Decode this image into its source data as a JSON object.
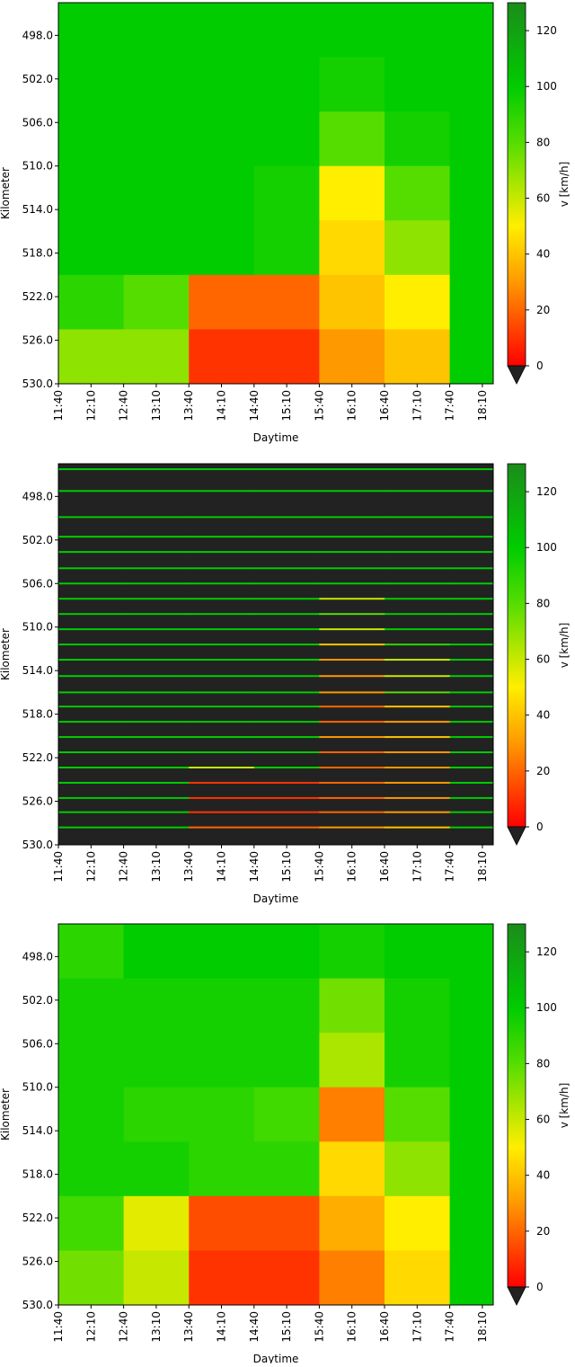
{
  "chart_data": [
    {
      "type": "heatmap",
      "xlabel": "Daytime",
      "ylabel": "Kilometer",
      "clabel": "v [km/h]",
      "xlim": [
        700,
        1100
      ],
      "ylim": [
        530,
        495
      ],
      "clim": [
        0,
        130
      ],
      "xticks": [
        {
          "value": 700,
          "label": "11:40"
        },
        {
          "value": 730,
          "label": "12:10"
        },
        {
          "value": 760,
          "label": "12:40"
        },
        {
          "value": 790,
          "label": "13:10"
        },
        {
          "value": 820,
          "label": "13:40"
        },
        {
          "value": 850,
          "label": "14:10"
        },
        {
          "value": 880,
          "label": "14:40"
        },
        {
          "value": 910,
          "label": "15:10"
        },
        {
          "value": 940,
          "label": "15:40"
        },
        {
          "value": 970,
          "label": "16:10"
        },
        {
          "value": 1000,
          "label": "16:40"
        },
        {
          "value": 1030,
          "label": "17:10"
        },
        {
          "value": 1060,
          "label": "17:40"
        },
        {
          "value": 1090,
          "label": "18:10"
        }
      ],
      "yticks": [
        {
          "value": 498,
          "label": "498.0"
        },
        {
          "value": 502,
          "label": "502.0"
        },
        {
          "value": 506,
          "label": "506.0"
        },
        {
          "value": 510,
          "label": "510.0"
        },
        {
          "value": 514,
          "label": "514.0"
        },
        {
          "value": 518,
          "label": "518.0"
        },
        {
          "value": 522,
          "label": "522.0"
        },
        {
          "value": 526,
          "label": "526.0"
        },
        {
          "value": 530,
          "label": "530.0"
        }
      ],
      "cticks": [
        0,
        20,
        40,
        60,
        80,
        100,
        120
      ],
      "colormap": [
        {
          "value": 0,
          "color": "#ff0000"
        },
        {
          "value": 30,
          "color": "#ff9900"
        },
        {
          "value": 50,
          "color": "#ffee00"
        },
        {
          "value": 80,
          "color": "#55dd00"
        },
        {
          "value": 100,
          "color": "#00cc00"
        },
        {
          "value": 130,
          "color": "#1b8c1b"
        }
      ],
      "extend_color": "#222222",
      "background": "#222222",
      "xbins": [
        700,
        760,
        820,
        880,
        940,
        1000,
        1060,
        1100
      ],
      "ybins": [
        495,
        500,
        505,
        510,
        515,
        520,
        525,
        530
      ],
      "z": [
        [
          100,
          100,
          100,
          100,
          100,
          100,
          100
        ],
        [
          100,
          100,
          100,
          100,
          95,
          100,
          100
        ],
        [
          100,
          100,
          100,
          100,
          80,
          95,
          100
        ],
        [
          100,
          100,
          100,
          95,
          50,
          80,
          100
        ],
        [
          100,
          100,
          100,
          95,
          45,
          70,
          100
        ],
        [
          90,
          80,
          20,
          20,
          40,
          50,
          100
        ],
        [
          70,
          70,
          10,
          10,
          30,
          40,
          100
        ]
      ]
    },
    {
      "type": "detector",
      "xlabel": "Daytime",
      "ylabel": "Kilometer",
      "clabel": "v [km/h]",
      "xlim": [
        700,
        1100
      ],
      "ylim": [
        530,
        495
      ],
      "clim": [
        0,
        130
      ],
      "xticks": [
        {
          "value": 700,
          "label": "11:40"
        },
        {
          "value": 730,
          "label": "12:10"
        },
        {
          "value": 760,
          "label": "12:40"
        },
        {
          "value": 790,
          "label": "13:10"
        },
        {
          "value": 820,
          "label": "13:40"
        },
        {
          "value": 850,
          "label": "14:10"
        },
        {
          "value": 880,
          "label": "14:40"
        },
        {
          "value": 910,
          "label": "15:10"
        },
        {
          "value": 940,
          "label": "15:40"
        },
        {
          "value": 970,
          "label": "16:10"
        },
        {
          "value": 1000,
          "label": "16:40"
        },
        {
          "value": 1030,
          "label": "17:10"
        },
        {
          "value": 1060,
          "label": "17:40"
        },
        {
          "value": 1090,
          "label": "18:10"
        }
      ],
      "yticks": [
        {
          "value": 498,
          "label": "498.0"
        },
        {
          "value": 502,
          "label": "502.0"
        },
        {
          "value": 506,
          "label": "506.0"
        },
        {
          "value": 510,
          "label": "510.0"
        },
        {
          "value": 514,
          "label": "514.0"
        },
        {
          "value": 518,
          "label": "518.0"
        },
        {
          "value": 522,
          "label": "522.0"
        },
        {
          "value": 526,
          "label": "526.0"
        },
        {
          "value": 530,
          "label": "530.0"
        }
      ],
      "cticks": [
        0,
        20,
        40,
        60,
        80,
        100,
        120
      ],
      "colormap": [
        {
          "value": 0,
          "color": "#ff0000"
        },
        {
          "value": 30,
          "color": "#ff9900"
        },
        {
          "value": 50,
          "color": "#ffee00"
        },
        {
          "value": 80,
          "color": "#55dd00"
        },
        {
          "value": 100,
          "color": "#00cc00"
        },
        {
          "value": 130,
          "color": "#1b8c1b"
        }
      ],
      "extend_color": "#222222",
      "background": "#222222",
      "xbins": [
        700,
        760,
        820,
        880,
        940,
        1000,
        1060,
        1100
      ],
      "detectors": [
        495.5,
        497.5,
        499.9,
        501.7,
        503.1,
        504.6,
        506.0,
        507.4,
        508.8,
        510.2,
        511.6,
        513.0,
        514.5,
        516.0,
        517.3,
        518.7,
        520.1,
        521.5,
        522.9,
        524.3,
        525.7,
        527.0,
        528.4
      ],
      "z": [
        [
          100,
          100,
          100,
          100,
          100,
          100,
          100
        ],
        [
          100,
          100,
          100,
          100,
          100,
          100,
          100
        ],
        [
          100,
          100,
          100,
          100,
          100,
          100,
          100
        ],
        [
          100,
          100,
          100,
          100,
          100,
          100,
          100
        ],
        [
          100,
          100,
          100,
          100,
          100,
          100,
          100
        ],
        [
          100,
          100,
          100,
          100,
          100,
          100,
          100
        ],
        [
          100,
          100,
          100,
          100,
          100,
          100,
          100
        ],
        [
          100,
          100,
          100,
          100,
          60,
          100,
          100
        ],
        [
          100,
          100,
          100,
          100,
          80,
          100,
          100
        ],
        [
          100,
          100,
          100,
          100,
          60,
          100,
          100
        ],
        [
          100,
          100,
          100,
          100,
          40,
          90,
          100
        ],
        [
          100,
          100,
          100,
          100,
          30,
          60,
          100
        ],
        [
          100,
          100,
          100,
          100,
          30,
          60,
          100
        ],
        [
          100,
          100,
          100,
          100,
          30,
          80,
          100
        ],
        [
          100,
          100,
          100,
          100,
          20,
          40,
          100
        ],
        [
          100,
          100,
          100,
          100,
          20,
          30,
          100
        ],
        [
          100,
          100,
          100,
          100,
          30,
          40,
          100
        ],
        [
          100,
          100,
          100,
          100,
          20,
          30,
          100
        ],
        [
          100,
          100,
          60,
          100,
          20,
          30,
          100
        ],
        [
          100,
          100,
          10,
          10,
          20,
          30,
          100
        ],
        [
          100,
          100,
          10,
          10,
          20,
          30,
          100
        ],
        [
          100,
          100,
          10,
          10,
          20,
          30,
          100
        ],
        [
          100,
          100,
          20,
          20,
          30,
          40,
          100
        ]
      ]
    },
    {
      "type": "heatmap",
      "xlabel": "Daytime",
      "ylabel": "Kilometer",
      "clabel": "v [km/h]",
      "xlim": [
        700,
        1100
      ],
      "ylim": [
        530,
        495
      ],
      "clim": [
        0,
        130
      ],
      "xticks": [
        {
          "value": 700,
          "label": "11:40"
        },
        {
          "value": 730,
          "label": "12:10"
        },
        {
          "value": 760,
          "label": "12:40"
        },
        {
          "value": 790,
          "label": "13:10"
        },
        {
          "value": 820,
          "label": "13:40"
        },
        {
          "value": 850,
          "label": "14:10"
        },
        {
          "value": 880,
          "label": "14:40"
        },
        {
          "value": 910,
          "label": "15:10"
        },
        {
          "value": 940,
          "label": "15:40"
        },
        {
          "value": 970,
          "label": "16:10"
        },
        {
          "value": 1000,
          "label": "16:40"
        },
        {
          "value": 1030,
          "label": "17:10"
        },
        {
          "value": 1060,
          "label": "17:40"
        },
        {
          "value": 1090,
          "label": "18:10"
        }
      ],
      "yticks": [
        {
          "value": 498,
          "label": "498.0"
        },
        {
          "value": 502,
          "label": "502.0"
        },
        {
          "value": 506,
          "label": "506.0"
        },
        {
          "value": 510,
          "label": "510.0"
        },
        {
          "value": 514,
          "label": "514.0"
        },
        {
          "value": 518,
          "label": "518.0"
        },
        {
          "value": 522,
          "label": "522.0"
        },
        {
          "value": 526,
          "label": "526.0"
        },
        {
          "value": 530,
          "label": "530.0"
        }
      ],
      "cticks": [
        0,
        20,
        40,
        60,
        80,
        100,
        120
      ],
      "colormap": [
        {
          "value": 0,
          "color": "#ff0000"
        },
        {
          "value": 30,
          "color": "#ff9900"
        },
        {
          "value": 50,
          "color": "#ffee00"
        },
        {
          "value": 80,
          "color": "#55dd00"
        },
        {
          "value": 100,
          "color": "#00cc00"
        },
        {
          "value": 130,
          "color": "#1b8c1b"
        }
      ],
      "extend_color": "#222222",
      "background": "#222222",
      "xbins": [
        700,
        760,
        820,
        880,
        940,
        1000,
        1060,
        1100
      ],
      "ybins": [
        495,
        500,
        505,
        510,
        515,
        520,
        525,
        530
      ],
      "z": [
        [
          90,
          100,
          100,
          100,
          95,
          100,
          100
        ],
        [
          95,
          95,
          95,
          95,
          75,
          95,
          100
        ],
        [
          95,
          95,
          95,
          95,
          65,
          95,
          100
        ],
        [
          95,
          90,
          90,
          85,
          25,
          80,
          100
        ],
        [
          95,
          95,
          90,
          90,
          45,
          70,
          100
        ],
        [
          85,
          55,
          15,
          15,
          35,
          50,
          100
        ],
        [
          75,
          60,
          10,
          10,
          25,
          45,
          100
        ]
      ]
    }
  ]
}
